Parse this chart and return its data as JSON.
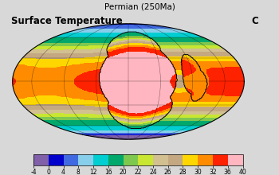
{
  "title_top": "Permian (250Ma)",
  "title_left": "Surface Temperature",
  "label_c": "C",
  "colorbar_ticks": [
    -4,
    0,
    4,
    8,
    12,
    16,
    20,
    22,
    24,
    26,
    28,
    30,
    32,
    36,
    40
  ],
  "colorbar_colors": [
    "#8060a8",
    "#0000cd",
    "#4169e1",
    "#87ceeb",
    "#00ced1",
    "#00a86b",
    "#7ec850",
    "#c8e632",
    "#d2c090",
    "#c4a882",
    "#ffd700",
    "#ff8c00",
    "#ff2200",
    "#8b0000",
    "#ffb6c1",
    "#ff00cc"
  ],
  "bg_color": "#d8d8d8",
  "ellipse_bg": "#d8d8d8"
}
